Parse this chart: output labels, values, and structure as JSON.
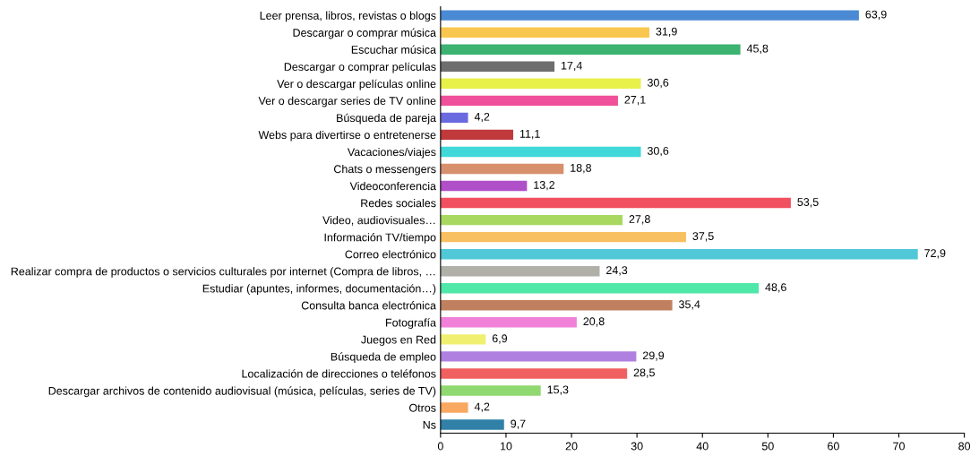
{
  "chart_data": {
    "type": "bar",
    "orientation": "horizontal",
    "categories": [
      "Leer prensa, libros, revistas o blogs",
      "Descargar o comprar música",
      "Escuchar música",
      "Descargar o comprar películas",
      "Ver o descargar películas online",
      "Ver o descargar series de TV online",
      "Búsqueda de pareja",
      "Webs para divertirse o entretenerse",
      "Vacaciones/viajes",
      "Chats o messengers",
      "Videoconferencia",
      "Redes sociales",
      "Video, audiovisuales…",
      "Información TV/tiempo",
      "Correo electrónico",
      "Realizar compra de productos o servicios culturales por internet (Compra de libros, …",
      "Estudiar (apuntes, informes, documentación…)",
      "Consulta banca electrónica",
      "Fotografía",
      "Juegos en Red",
      "Búsqueda de empleo",
      "Localización de direcciones o teléfonos",
      "Descargar archivos de contenido audiovisual (música, películas, series de TV)",
      "Otros",
      "Ns"
    ],
    "values": [
      63.9,
      31.9,
      45.8,
      17.4,
      30.6,
      27.1,
      4.2,
      11.1,
      30.6,
      18.8,
      13.2,
      53.5,
      27.8,
      37.5,
      72.9,
      24.3,
      48.6,
      35.4,
      20.8,
      6.9,
      29.9,
      28.5,
      15.3,
      4.2,
      9.7
    ],
    "value_labels": [
      "63,9",
      "31,9",
      "45,8",
      "17,4",
      "30,6",
      "27,1",
      "4,2",
      "11,1",
      "30,6",
      "18,8",
      "13,2",
      "53,5",
      "27,8",
      "37,5",
      "72,9",
      "24,3",
      "48,6",
      "35,4",
      "20,8",
      "6,9",
      "29,9",
      "28,5",
      "15,3",
      "4,2",
      "9,7"
    ],
    "colors": [
      "#4a8ad4",
      "#f9c74f",
      "#3cb371",
      "#6e6e6e",
      "#e8f04a",
      "#f0509a",
      "#6a6ae0",
      "#c0393b",
      "#40d8d8",
      "#d8906c",
      "#b050c8",
      "#f05060",
      "#a8d860",
      "#f8c060",
      "#50c8d8",
      "#b0b0a8",
      "#50e8a8",
      "#c08060",
      "#f080d8",
      "#f0f070",
      "#b080e0",
      "#f06060",
      "#90d870",
      "#f8a860",
      "#3080a8"
    ],
    "xlim": [
      0,
      80
    ],
    "xticks": [
      0,
      10,
      20,
      30,
      40,
      50,
      60,
      70,
      80
    ],
    "grid": false,
    "legend": false
  }
}
